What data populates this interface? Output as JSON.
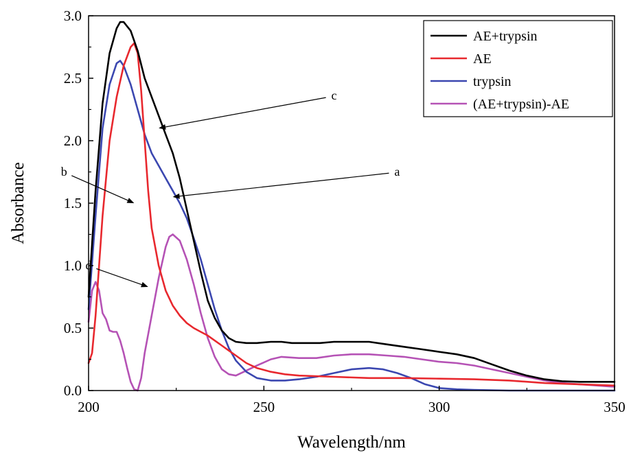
{
  "chart_data": {
    "type": "line",
    "title": "",
    "xlabel": "Wavelength/nm",
    "ylabel": "Absorbance",
    "xlim": [
      200,
      350
    ],
    "ylim": [
      0,
      3.0
    ],
    "xticks": [
      200,
      250,
      300,
      350
    ],
    "yticks": [
      "0.0",
      "0.5",
      "1.0",
      "1.5",
      "2.0",
      "2.5",
      "3.0"
    ],
    "grid": false,
    "legend_position": "top-right",
    "series": [
      {
        "name": "AE+trypsin",
        "color": "#000000",
        "points": [
          [
            200,
            0.75
          ],
          [
            202,
            1.6
          ],
          [
            204,
            2.3
          ],
          [
            206,
            2.7
          ],
          [
            208,
            2.9
          ],
          [
            209,
            2.95
          ],
          [
            210,
            2.95
          ],
          [
            212,
            2.88
          ],
          [
            214,
            2.72
          ],
          [
            216,
            2.5
          ],
          [
            218,
            2.35
          ],
          [
            220,
            2.2
          ],
          [
            222,
            2.05
          ],
          [
            224,
            1.9
          ],
          [
            226,
            1.7
          ],
          [
            228,
            1.45
          ],
          [
            230,
            1.2
          ],
          [
            232,
            0.95
          ],
          [
            234,
            0.72
          ],
          [
            236,
            0.58
          ],
          [
            238,
            0.48
          ],
          [
            240,
            0.42
          ],
          [
            242,
            0.39
          ],
          [
            245,
            0.38
          ],
          [
            248,
            0.38
          ],
          [
            252,
            0.39
          ],
          [
            255,
            0.39
          ],
          [
            258,
            0.38
          ],
          [
            262,
            0.38
          ],
          [
            266,
            0.38
          ],
          [
            270,
            0.39
          ],
          [
            275,
            0.39
          ],
          [
            280,
            0.39
          ],
          [
            285,
            0.37
          ],
          [
            290,
            0.35
          ],
          [
            295,
            0.33
          ],
          [
            300,
            0.31
          ],
          [
            305,
            0.29
          ],
          [
            310,
            0.26
          ],
          [
            315,
            0.21
          ],
          [
            320,
            0.16
          ],
          [
            325,
            0.12
          ],
          [
            330,
            0.09
          ],
          [
            335,
            0.075
          ],
          [
            340,
            0.07
          ],
          [
            345,
            0.07
          ],
          [
            350,
            0.07
          ]
        ]
      },
      {
        "name": "AE",
        "color": "#e8282e",
        "points": [
          [
            200,
            0.22
          ],
          [
            201,
            0.3
          ],
          [
            202,
            0.6
          ],
          [
            204,
            1.4
          ],
          [
            206,
            2.0
          ],
          [
            208,
            2.35
          ],
          [
            210,
            2.6
          ],
          [
            212,
            2.75
          ],
          [
            213,
            2.78
          ],
          [
            214,
            2.7
          ],
          [
            215,
            2.4
          ],
          [
            216,
            2.0
          ],
          [
            217,
            1.6
          ],
          [
            218,
            1.3
          ],
          [
            220,
            1.0
          ],
          [
            222,
            0.8
          ],
          [
            224,
            0.68
          ],
          [
            226,
            0.6
          ],
          [
            228,
            0.54
          ],
          [
            230,
            0.5
          ],
          [
            232,
            0.47
          ],
          [
            234,
            0.44
          ],
          [
            236,
            0.4
          ],
          [
            238,
            0.36
          ],
          [
            240,
            0.32
          ],
          [
            242,
            0.28
          ],
          [
            245,
            0.22
          ],
          [
            248,
            0.18
          ],
          [
            252,
            0.15
          ],
          [
            256,
            0.13
          ],
          [
            260,
            0.12
          ],
          [
            270,
            0.11
          ],
          [
            280,
            0.1
          ],
          [
            290,
            0.1
          ],
          [
            300,
            0.095
          ],
          [
            310,
            0.09
          ],
          [
            320,
            0.08
          ],
          [
            330,
            0.06
          ],
          [
            340,
            0.05
          ],
          [
            350,
            0.04
          ]
        ]
      },
      {
        "name": "trypsin",
        "color": "#3b47b0",
        "points": [
          [
            200,
            0.65
          ],
          [
            202,
            1.4
          ],
          [
            204,
            2.1
          ],
          [
            206,
            2.45
          ],
          [
            208,
            2.62
          ],
          [
            209,
            2.64
          ],
          [
            210,
            2.6
          ],
          [
            212,
            2.45
          ],
          [
            214,
            2.25
          ],
          [
            216,
            2.05
          ],
          [
            218,
            1.9
          ],
          [
            220,
            1.8
          ],
          [
            222,
            1.7
          ],
          [
            224,
            1.6
          ],
          [
            226,
            1.5
          ],
          [
            228,
            1.38
          ],
          [
            230,
            1.22
          ],
          [
            232,
            1.05
          ],
          [
            234,
            0.85
          ],
          [
            236,
            0.65
          ],
          [
            238,
            0.48
          ],
          [
            240,
            0.34
          ],
          [
            242,
            0.24
          ],
          [
            245,
            0.15
          ],
          [
            248,
            0.1
          ],
          [
            252,
            0.08
          ],
          [
            256,
            0.08
          ],
          [
            260,
            0.09
          ],
          [
            265,
            0.11
          ],
          [
            270,
            0.14
          ],
          [
            275,
            0.17
          ],
          [
            280,
            0.18
          ],
          [
            284,
            0.17
          ],
          [
            288,
            0.14
          ],
          [
            292,
            0.1
          ],
          [
            296,
            0.05
          ],
          [
            300,
            0.02
          ],
          [
            305,
            0.01
          ],
          [
            310,
            0.005
          ],
          [
            320,
            0.0
          ],
          [
            330,
            0.0
          ],
          [
            340,
            0.0
          ],
          [
            350,
            0.0
          ]
        ]
      },
      {
        "name": "(AE+trypsin)-AE",
        "color": "#b552b5",
        "points": [
          [
            200,
            0.55
          ],
          [
            201,
            0.8
          ],
          [
            202,
            0.87
          ],
          [
            203,
            0.8
          ],
          [
            204,
            0.62
          ],
          [
            205,
            0.57
          ],
          [
            206,
            0.48
          ],
          [
            207,
            0.47
          ],
          [
            208,
            0.47
          ],
          [
            209,
            0.4
          ],
          [
            210,
            0.3
          ],
          [
            211,
            0.18
          ],
          [
            212,
            0.07
          ],
          [
            213,
            0.01
          ],
          [
            214,
            0.0
          ],
          [
            215,
            0.1
          ],
          [
            216,
            0.3
          ],
          [
            218,
            0.6
          ],
          [
            220,
            0.9
          ],
          [
            222,
            1.15
          ],
          [
            223,
            1.23
          ],
          [
            224,
            1.25
          ],
          [
            226,
            1.2
          ],
          [
            228,
            1.05
          ],
          [
            230,
            0.85
          ],
          [
            232,
            0.62
          ],
          [
            234,
            0.42
          ],
          [
            236,
            0.27
          ],
          [
            238,
            0.17
          ],
          [
            240,
            0.13
          ],
          [
            242,
            0.12
          ],
          [
            245,
            0.16
          ],
          [
            248,
            0.2
          ],
          [
            252,
            0.25
          ],
          [
            255,
            0.27
          ],
          [
            260,
            0.26
          ],
          [
            265,
            0.26
          ],
          [
            270,
            0.28
          ],
          [
            275,
            0.29
          ],
          [
            280,
            0.29
          ],
          [
            285,
            0.28
          ],
          [
            290,
            0.27
          ],
          [
            295,
            0.25
          ],
          [
            300,
            0.23
          ],
          [
            305,
            0.22
          ],
          [
            310,
            0.2
          ],
          [
            315,
            0.17
          ],
          [
            320,
            0.14
          ],
          [
            325,
            0.11
          ],
          [
            330,
            0.08
          ],
          [
            335,
            0.06
          ],
          [
            340,
            0.05
          ],
          [
            345,
            0.04
          ],
          [
            350,
            0.03
          ]
        ]
      }
    ],
    "annotations": [
      {
        "label": "c",
        "text_x": 270,
        "text_y": 2.33,
        "arrow_to": [
          220,
          2.1
        ]
      },
      {
        "label": "a",
        "text_x": 288,
        "text_y": 1.72,
        "arrow_to": [
          224,
          1.55
        ]
      },
      {
        "label": "b",
        "text_x": 193,
        "text_y": 1.72,
        "arrow_to": [
          213,
          1.5
        ]
      },
      {
        "label": "d",
        "text_x": 200,
        "text_y": 0.97,
        "arrow_to": [
          217,
          0.83
        ]
      }
    ]
  }
}
